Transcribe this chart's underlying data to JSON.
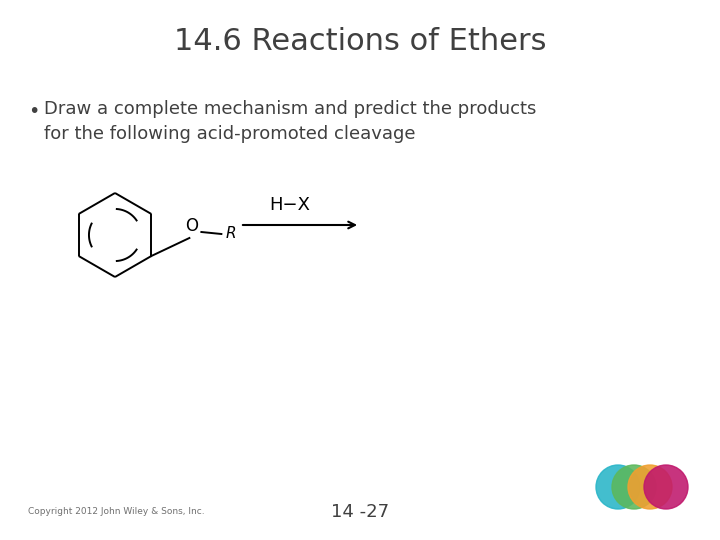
{
  "title": "14.6 Reactions of Ethers",
  "bullet_line1": "Draw a complete mechanism and predict the products",
  "bullet_line2": "for the following acid-promoted cleavage",
  "hx_label": "H−X",
  "copyright": "Copyright 2012 John Wiley & Sons, Inc.",
  "page_number": "14 -27",
  "title_color": "#404040",
  "text_color": "#404040",
  "bg_color": "#ffffff",
  "title_fontsize": 22,
  "bullet_fontsize": 13,
  "circle_colors": [
    "#29b5c8",
    "#5cb85c",
    "#f0a030",
    "#c0186c"
  ],
  "circle_alpha": 0.88
}
